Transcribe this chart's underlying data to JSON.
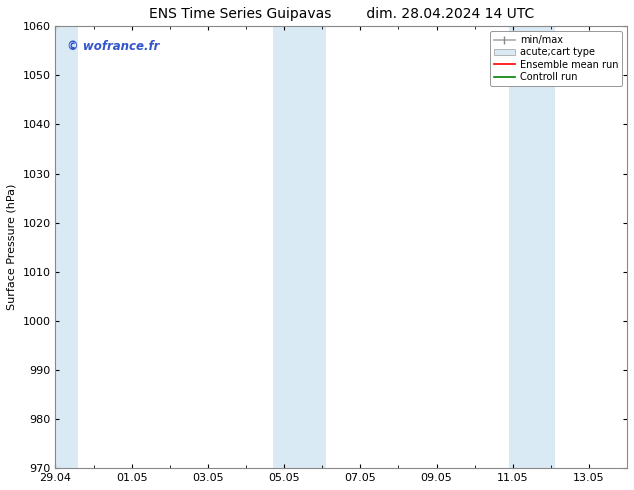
{
  "title_left": "ENS Time Series Guipavas",
  "title_right": "dim. 28.04.2024 14 UTC",
  "ylabel": "Surface Pressure (hPa)",
  "ylim": [
    970,
    1060
  ],
  "yticks": [
    970,
    980,
    990,
    1000,
    1010,
    1020,
    1030,
    1040,
    1050,
    1060
  ],
  "xlim_start": 0.0,
  "xlim_end": 15.0,
  "xtick_labels": [
    "29.04",
    "01.05",
    "03.05",
    "05.05",
    "07.05",
    "09.05",
    "11.05",
    "13.05"
  ],
  "xtick_positions": [
    0,
    2,
    4,
    6,
    8,
    10,
    12,
    14
  ],
  "shaded_bands": [
    {
      "x_start": -0.1,
      "x_end": 0.6,
      "color": "#daeaf5"
    },
    {
      "x_start": 5.7,
      "x_end": 7.1,
      "color": "#daeaf5"
    },
    {
      "x_start": 11.9,
      "x_end": 13.1,
      "color": "#daeaf5"
    }
  ],
  "watermark_text": "© wofrance.fr",
  "watermark_color": "#3355cc",
  "bg_color": "#ffffff",
  "plot_bg_color": "#ffffff",
  "grid_color": "#cccccc",
  "spine_color": "#888888",
  "title_fontsize": 10,
  "axis_label_fontsize": 8,
  "tick_fontsize": 8
}
